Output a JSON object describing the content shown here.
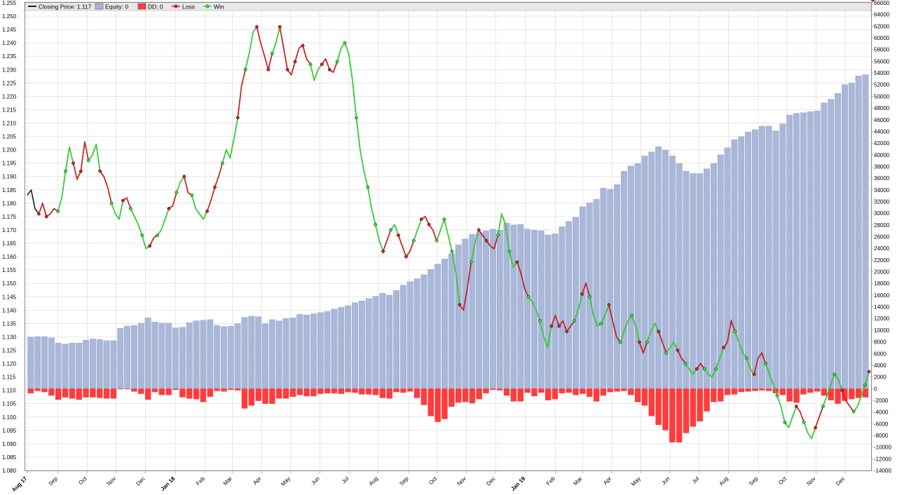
{
  "legend": {
    "closing": "Closing Price: 1.117",
    "equity": "Equity: 0",
    "dd": "DD: 0",
    "loss": "Loss",
    "win": "Win"
  },
  "colors": {
    "price": "#202020",
    "equity_fill": "#a9b7d8",
    "equity_stroke": "#8c9cc6",
    "dd": "#ff3b3b",
    "loss": "#e11c1c",
    "win": "#2ee82e",
    "grid": "#dcdcdc",
    "legend_bg": "#e8e8e8"
  },
  "chart_data": {
    "type": "line",
    "left_axis": {
      "min": 1.08,
      "max": 1.255,
      "step": 0.005,
      "ticks": [
        "1.080",
        "1.085",
        "1.090",
        "1.095",
        "1.100",
        "1.105",
        "1.110",
        "1.115",
        "1.120",
        "1.125",
        "1.130",
        "1.135",
        "1.140",
        "1.145",
        "1.150",
        "1.155",
        "1.160",
        "1.165",
        "1.170",
        "1.175",
        "1.180",
        "1.185",
        "1.190",
        "1.195",
        "1.200",
        "1.205",
        "1.210",
        "1.215",
        "1.220",
        "1.225",
        "1.230",
        "1.235",
        "1.240",
        "1.245",
        "1.250",
        "1.255"
      ]
    },
    "right_axis": {
      "min": -14000,
      "max": 66000,
      "step": 2000,
      "ticks": [
        "-14000",
        "-12000",
        "-10000",
        "-8000",
        "-6000",
        "-4000",
        "-2000",
        "0",
        "2000",
        "4000",
        "6000",
        "8000",
        "10000",
        "12000",
        "14000",
        "16000",
        "18000",
        "20000",
        "22000",
        "24000",
        "26000",
        "28000",
        "30000",
        "32000",
        "34000",
        "36000",
        "38000",
        "40000",
        "42000",
        "44000",
        "46000",
        "48000",
        "50000",
        "52000",
        "54000",
        "56000",
        "58000",
        "60000",
        "62000",
        "64000",
        "66000"
      ]
    },
    "x_labels": [
      {
        "label": "Aug 17",
        "week": 0,
        "bold": true
      },
      {
        "label": "Sep",
        "week": 4.5,
        "bold": false
      },
      {
        "label": "Oct",
        "week": 8.8,
        "bold": false
      },
      {
        "label": "Nov",
        "week": 13.1,
        "bold": false
      },
      {
        "label": "Dec",
        "week": 17.4,
        "bold": false
      },
      {
        "label": "Jan 18",
        "week": 21.8,
        "bold": true
      },
      {
        "label": "Feb",
        "week": 26.2,
        "bold": false
      },
      {
        "label": "Mar",
        "week": 30.2,
        "bold": false
      },
      {
        "label": "Apr",
        "week": 34.5,
        "bold": false
      },
      {
        "label": "May",
        "week": 38.8,
        "bold": false
      },
      {
        "label": "Jun",
        "week": 43.1,
        "bold": false
      },
      {
        "label": "Jul",
        "week": 47.4,
        "bold": false
      },
      {
        "label": "Aug",
        "week": 51.7,
        "bold": false
      },
      {
        "label": "Sep",
        "week": 56.2,
        "bold": false
      },
      {
        "label": "Oct",
        "week": 60.4,
        "bold": false
      },
      {
        "label": "Nov",
        "week": 64.7,
        "bold": false
      },
      {
        "label": "Dec",
        "week": 69.0,
        "bold": false
      },
      {
        "label": "Jan 19",
        "week": 73.4,
        "bold": true
      },
      {
        "label": "Feb",
        "week": 77.8,
        "bold": false
      },
      {
        "label": "Mar",
        "week": 81.8,
        "bold": false
      },
      {
        "label": "Apr",
        "week": 86.1,
        "bold": false
      },
      {
        "label": "May",
        "week": 90.4,
        "bold": false
      },
      {
        "label": "Jun",
        "week": 94.7,
        "bold": false
      },
      {
        "label": "Jul",
        "week": 99.0,
        "bold": false
      },
      {
        "label": "Aug",
        "week": 103.3,
        "bold": false
      },
      {
        "label": "Sep",
        "week": 107.7,
        "bold": false
      },
      {
        "label": "Oct",
        "week": 111.9,
        "bold": false
      },
      {
        "label": "Nov",
        "week": 116.2,
        "bold": false
      },
      {
        "label": "Dec",
        "week": 120.5,
        "bold": false
      }
    ],
    "x_weeks": 124,
    "price": [
      1.183,
      1.185,
      1.178,
      1.176,
      1.18,
      1.175,
      1.176,
      1.178,
      1.177,
      1.182,
      1.192,
      1.201,
      1.195,
      1.189,
      1.192,
      1.203,
      1.196,
      1.198,
      1.202,
      1.192,
      1.19,
      1.186,
      1.18,
      1.176,
      1.174,
      1.181,
      1.182,
      1.178,
      1.175,
      1.172,
      1.168,
      1.163,
      1.164,
      1.167,
      1.168,
      1.17,
      1.174,
      1.178,
      1.179,
      1.184,
      1.188,
      1.19,
      1.184,
      1.183,
      1.178,
      1.176,
      1.174,
      1.177,
      1.181,
      1.186,
      1.19,
      1.195,
      1.2,
      1.197,
      1.204,
      1.212,
      1.224,
      1.23,
      1.236,
      1.244,
      1.246,
      1.24,
      1.235,
      1.23,
      1.236,
      1.24,
      1.246,
      1.238,
      1.23,
      1.228,
      1.233,
      1.238,
      1.239,
      1.234,
      1.232,
      1.226,
      1.23,
      1.232,
      1.234,
      1.23,
      1.229,
      1.233,
      1.238,
      1.24,
      1.236,
      1.226,
      1.212,
      1.2,
      1.192,
      1.186,
      1.178,
      1.172,
      1.166,
      1.162,
      1.166,
      1.17,
      1.172,
      1.168,
      1.164,
      1.16,
      1.162,
      1.166,
      1.17,
      1.174,
      1.175,
      1.172,
      1.17,
      1.166,
      1.17,
      1.174,
      1.168,
      1.162,
      1.154,
      1.142,
      1.14,
      1.148,
      1.158,
      1.165,
      1.17,
      1.168,
      1.166,
      1.164,
      1.163,
      1.168,
      1.176,
      1.172,
      1.162,
      1.156,
      1.158,
      1.154,
      1.148,
      1.145,
      1.143,
      1.14,
      1.136,
      1.13,
      1.126,
      1.134,
      1.138,
      1.134,
      1.136,
      1.132,
      1.134,
      1.136,
      1.14,
      1.146,
      1.15,
      1.145,
      1.138,
      1.134,
      1.135,
      1.138,
      1.142,
      1.136,
      1.13,
      1.128,
      1.132,
      1.136,
      1.138,
      1.134,
      1.128,
      1.124,
      1.128,
      1.132,
      1.135,
      1.132,
      1.128,
      1.124,
      1.126,
      1.128,
      1.125,
      1.122,
      1.12,
      1.118,
      1.116,
      1.118,
      1.12,
      1.118,
      1.116,
      1.115,
      1.118,
      1.122,
      1.126,
      1.128,
      1.136,
      1.132,
      1.128,
      1.124,
      1.122,
      1.118,
      1.116,
      1.122,
      1.124,
      1.12,
      1.116,
      1.112,
      1.108,
      1.104,
      1.098,
      1.096,
      1.1,
      1.104,
      1.102,
      1.098,
      1.094,
      1.092,
      1.096,
      1.1,
      1.104,
      1.108,
      1.112,
      1.116,
      1.114,
      1.11,
      1.106,
      1.104,
      1.102,
      1.104,
      1.108,
      1.112,
      1.117
    ],
    "equity": [
      8800,
      8900,
      8900,
      8700,
      7800,
      7600,
      7800,
      7800,
      8300,
      8500,
      8400,
      8200,
      8200,
      10300,
      10700,
      10800,
      11200,
      12100,
      11400,
      11200,
      11200,
      10400,
      10500,
      11300,
      11600,
      11700,
      11800,
      10800,
      10600,
      10700,
      11100,
      12200,
      12400,
      12300,
      11100,
      11800,
      11600,
      12000,
      12100,
      12700,
      12600,
      12800,
      13000,
      13200,
      13600,
      13900,
      14200,
      14700,
      15000,
      15400,
      15800,
      16300,
      16000,
      16800,
      17700,
      18300,
      18800,
      19500,
      20400,
      21300,
      22200,
      23100,
      24600,
      25600,
      26400,
      26700,
      27000,
      27300,
      27100,
      28300,
      28000,
      28100,
      27300,
      27100,
      27000,
      26300,
      26500,
      27700,
      28600,
      29300,
      31100,
      31800,
      32400,
      34300,
      34100,
      34900,
      37200,
      38100,
      38500,
      39800,
      40500,
      41400,
      40800,
      39800,
      38500,
      37200,
      36800,
      36800,
      37600,
      38500,
      40000,
      41200,
      42600,
      43100,
      43900,
      44300,
      44900,
      44900,
      44100,
      45300,
      46800,
      47100,
      47200,
      47400,
      47500,
      48900,
      49500,
      50500,
      52000,
      52300,
      53500,
      53700
    ],
    "drawdown": [
      -800,
      -400,
      -600,
      -1200,
      -1900,
      -1500,
      -1700,
      -1900,
      -1500,
      -1500,
      -1600,
      -1700,
      -1700,
      -100,
      -100,
      -500,
      -900,
      -1900,
      -600,
      -1100,
      -1100,
      -200,
      -1500,
      -1700,
      -1800,
      -2300,
      -1400,
      -400,
      -500,
      -200,
      -300,
      -3400,
      -2900,
      -2100,
      -2600,
      -2600,
      -1700,
      -1700,
      -1400,
      -1100,
      -1300,
      -1300,
      -900,
      -800,
      -800,
      -900,
      -600,
      -700,
      -1000,
      -1000,
      -1100,
      -1600,
      -1700,
      -600,
      -700,
      -500,
      -1600,
      -2800,
      -4700,
      -5700,
      -5200,
      -3100,
      -2400,
      -2300,
      -2500,
      -1800,
      -800,
      -200,
      -300,
      -1200,
      -2200,
      -2200,
      -700,
      -1300,
      -700,
      -2000,
      -1800,
      -800,
      -700,
      -1100,
      -900,
      -1400,
      -2200,
      -1200,
      -600,
      -500,
      -400,
      -1100,
      -2300,
      -2900,
      -4700,
      -6200,
      -7100,
      -9200,
      -9200,
      -7600,
      -6500,
      -5600,
      -3900,
      -2300,
      -2200,
      -1100,
      -1000,
      -600,
      -500,
      -400,
      -300,
      -400,
      -800,
      -1100,
      -2200,
      -2400,
      -1000,
      -700,
      -500,
      -1200,
      -2000,
      -2600,
      -2100,
      -1800,
      -1600,
      -1500
    ],
    "trades": [
      {
        "i": 3,
        "win": false
      },
      {
        "i": 5,
        "win": false
      },
      {
        "i": 8,
        "win": true
      },
      {
        "i": 10,
        "win": true
      },
      {
        "i": 12,
        "win": false
      },
      {
        "i": 14,
        "win": false
      },
      {
        "i": 16,
        "win": true
      },
      {
        "i": 19,
        "win": false
      },
      {
        "i": 22,
        "win": true
      },
      {
        "i": 25,
        "win": false
      },
      {
        "i": 27,
        "win": true
      },
      {
        "i": 30,
        "win": true
      },
      {
        "i": 32,
        "win": false
      },
      {
        "i": 34,
        "win": true
      },
      {
        "i": 37,
        "win": false
      },
      {
        "i": 39,
        "win": true
      },
      {
        "i": 41,
        "win": false
      },
      {
        "i": 43,
        "win": true
      },
      {
        "i": 47,
        "win": false
      },
      {
        "i": 49,
        "win": false
      },
      {
        "i": 51,
        "win": true
      },
      {
        "i": 55,
        "win": false
      },
      {
        "i": 57,
        "win": true
      },
      {
        "i": 60,
        "win": false
      },
      {
        "i": 63,
        "win": false
      },
      {
        "i": 64,
        "win": true
      },
      {
        "i": 66,
        "win": false
      },
      {
        "i": 68,
        "win": false
      },
      {
        "i": 70,
        "win": false
      },
      {
        "i": 72,
        "win": false
      },
      {
        "i": 74,
        "win": true
      },
      {
        "i": 77,
        "win": false
      },
      {
        "i": 79,
        "win": false
      },
      {
        "i": 81,
        "win": true
      },
      {
        "i": 83,
        "win": true
      },
      {
        "i": 86,
        "win": true
      },
      {
        "i": 89,
        "win": true
      },
      {
        "i": 91,
        "win": true
      },
      {
        "i": 93,
        "win": false
      },
      {
        "i": 95,
        "win": true
      },
      {
        "i": 97,
        "win": false
      },
      {
        "i": 99,
        "win": false
      },
      {
        "i": 101,
        "win": true
      },
      {
        "i": 103,
        "win": false
      },
      {
        "i": 105,
        "win": false
      },
      {
        "i": 107,
        "win": true
      },
      {
        "i": 109,
        "win": true
      },
      {
        "i": 111,
        "win": true
      },
      {
        "i": 113,
        "win": false
      },
      {
        "i": 116,
        "win": true
      },
      {
        "i": 118,
        "win": false
      },
      {
        "i": 120,
        "win": false
      },
      {
        "i": 123,
        "win": true
      },
      {
        "i": 126,
        "win": true
      },
      {
        "i": 128,
        "win": false
      },
      {
        "i": 131,
        "win": true
      },
      {
        "i": 134,
        "win": true
      },
      {
        "i": 137,
        "win": false
      },
      {
        "i": 139,
        "win": false
      },
      {
        "i": 141,
        "win": false
      },
      {
        "i": 143,
        "win": true
      },
      {
        "i": 145,
        "win": false
      },
      {
        "i": 147,
        "win": true
      },
      {
        "i": 150,
        "win": true
      },
      {
        "i": 152,
        "win": false
      },
      {
        "i": 155,
        "win": true
      },
      {
        "i": 158,
        "win": true
      },
      {
        "i": 160,
        "win": false
      },
      {
        "i": 162,
        "win": true
      },
      {
        "i": 165,
        "win": false
      },
      {
        "i": 167,
        "win": true
      },
      {
        "i": 170,
        "win": false
      },
      {
        "i": 172,
        "win": true
      },
      {
        "i": 175,
        "win": false
      },
      {
        "i": 177,
        "win": true
      },
      {
        "i": 180,
        "win": true
      },
      {
        "i": 182,
        "win": false
      },
      {
        "i": 185,
        "win": true
      },
      {
        "i": 188,
        "win": true
      },
      {
        "i": 190,
        "win": false
      },
      {
        "i": 193,
        "win": true
      },
      {
        "i": 196,
        "win": true
      },
      {
        "i": 198,
        "win": true
      },
      {
        "i": 201,
        "win": false
      },
      {
        "i": 203,
        "win": true
      },
      {
        "i": 206,
        "win": false
      },
      {
        "i": 208,
        "win": true
      },
      {
        "i": 211,
        "win": true
      },
      {
        "i": 213,
        "win": false
      },
      {
        "i": 216,
        "win": true
      },
      {
        "i": 219,
        "win": true
      },
      {
        "i": 221,
        "win": false
      }
    ]
  }
}
